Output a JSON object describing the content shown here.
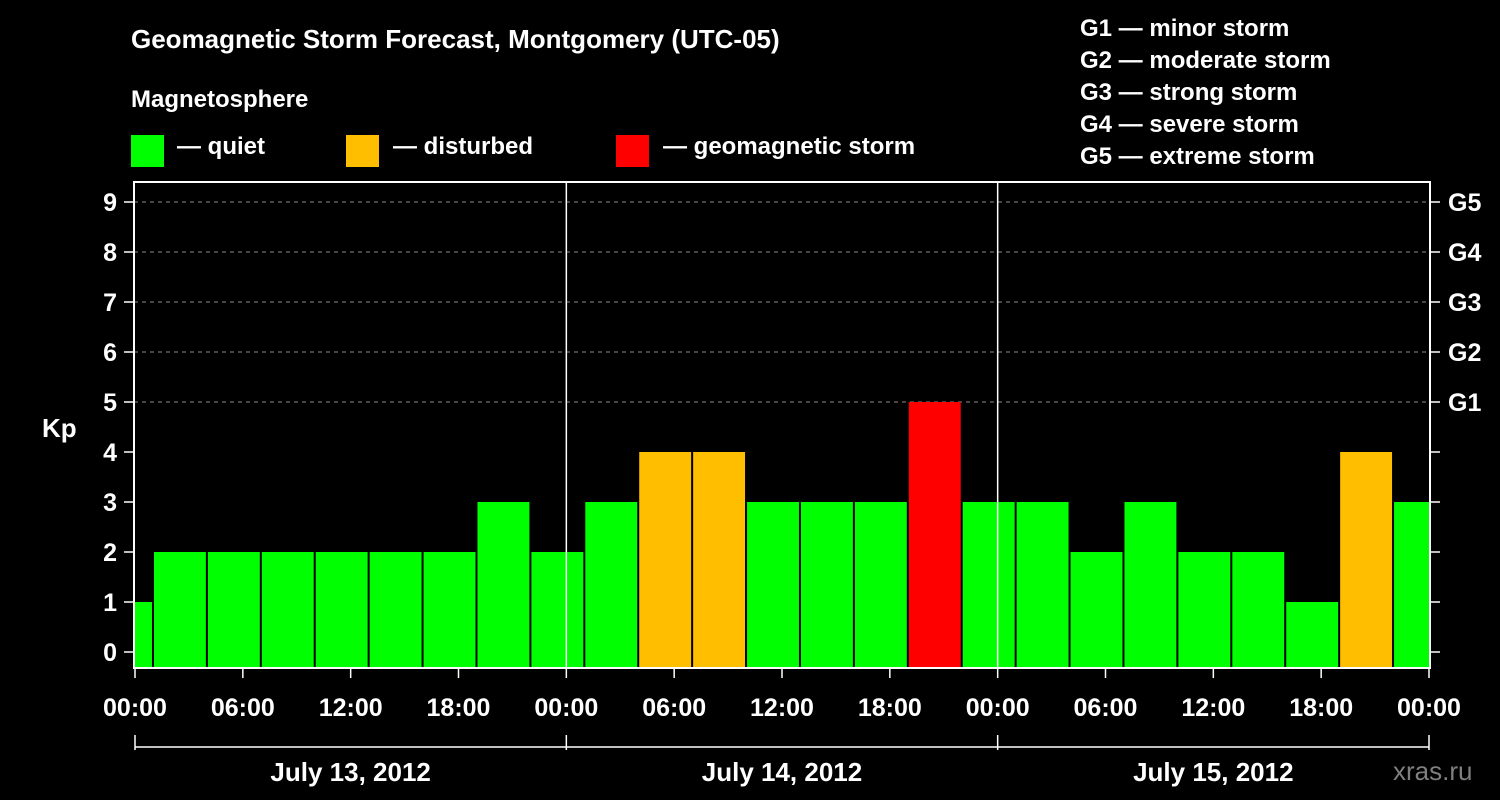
{
  "chart_data": {
    "type": "bar",
    "title": "Geomagnetic Storm Forecast, Montgomery (UTC-05)",
    "ylabel": "Kp",
    "ylim": [
      0,
      9
    ],
    "yticks": [
      "0",
      "1",
      "2",
      "3",
      "4",
      "5",
      "6",
      "7",
      "8",
      "9"
    ],
    "right_ticks": [
      {
        "kp": 5,
        "label": "G1"
      },
      {
        "kp": 6,
        "label": "G2"
      },
      {
        "kp": 7,
        "label": "G3"
      },
      {
        "kp": 8,
        "label": "G4"
      },
      {
        "kp": 9,
        "label": "G5"
      }
    ],
    "x_range_hours": [
      0,
      72
    ],
    "x_ticks": [
      "00:00",
      "06:00",
      "12:00",
      "18:00",
      "00:00",
      "06:00",
      "12:00",
      "18:00",
      "00:00",
      "06:00",
      "12:00",
      "18:00",
      "00:00"
    ],
    "days": [
      "July 13, 2012",
      "July 14, 2012",
      "July 15, 2012"
    ],
    "bars": [
      {
        "start": -1,
        "end": 1,
        "kp": 1
      },
      {
        "start": 1,
        "end": 4,
        "kp": 2
      },
      {
        "start": 4,
        "end": 7,
        "kp": 2
      },
      {
        "start": 7,
        "end": 10,
        "kp": 2
      },
      {
        "start": 10,
        "end": 13,
        "kp": 2
      },
      {
        "start": 13,
        "end": 16,
        "kp": 2
      },
      {
        "start": 16,
        "end": 19,
        "kp": 2
      },
      {
        "start": 19,
        "end": 22,
        "kp": 3
      },
      {
        "start": 22,
        "end": 25,
        "kp": 2
      },
      {
        "start": 25,
        "end": 28,
        "kp": 3
      },
      {
        "start": 28,
        "end": 31,
        "kp": 4
      },
      {
        "start": 31,
        "end": 34,
        "kp": 4
      },
      {
        "start": 34,
        "end": 37,
        "kp": 3
      },
      {
        "start": 37,
        "end": 40,
        "kp": 3
      },
      {
        "start": 40,
        "end": 43,
        "kp": 3
      },
      {
        "start": 43,
        "end": 46,
        "kp": 5
      },
      {
        "start": 46,
        "end": 49,
        "kp": 3
      },
      {
        "start": 49,
        "end": 52,
        "kp": 3
      },
      {
        "start": 52,
        "end": 55,
        "kp": 2
      },
      {
        "start": 55,
        "end": 58,
        "kp": 3
      },
      {
        "start": 58,
        "end": 61,
        "kp": 2
      },
      {
        "start": 61,
        "end": 64,
        "kp": 2
      },
      {
        "start": 64,
        "end": 67,
        "kp": 1
      },
      {
        "start": 67,
        "end": 70,
        "kp": 4
      },
      {
        "start": 70,
        "end": 73,
        "kp": 3
      }
    ],
    "grid": "dashed-horizontal",
    "colors": {
      "quiet": "#00ff00",
      "disturbed": "#ffbf00",
      "storm": "#ff0000"
    }
  },
  "legend": {
    "title": "Magnetosphere",
    "items": [
      {
        "label": "— quiet",
        "color": "#00ff00"
      },
      {
        "label": "— disturbed",
        "color": "#ffbf00"
      },
      {
        "label": "— geomagnetic storm",
        "color": "#ff0000"
      }
    ]
  },
  "g_scale": [
    "G1 — minor storm",
    "G2 — moderate storm",
    "G3 — strong storm",
    "G4 — severe storm",
    "G5 — extreme storm"
  ],
  "watermark": "xras.ru"
}
